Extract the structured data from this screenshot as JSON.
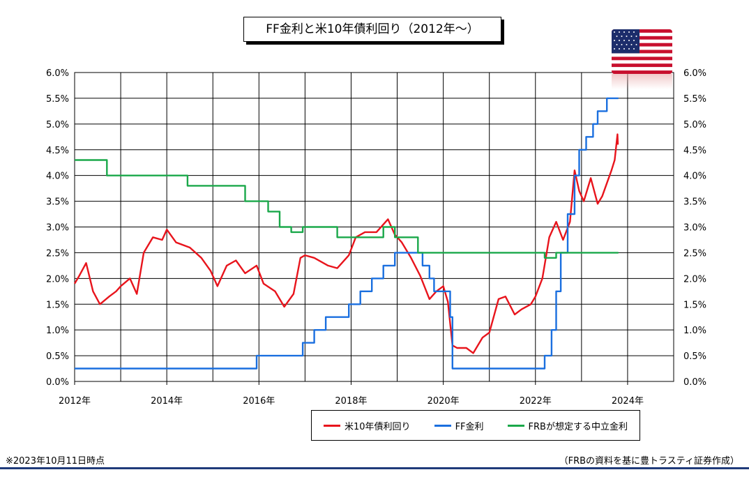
{
  "title": "FF金利と米10年債利回り（2012年～）",
  "note_left": "※2023年10月11日時点",
  "note_right": "（FRBの資料を基に豊トラスティ証券作成）",
  "flag_icon": "us-flag-icon",
  "chart_data": {
    "type": "line",
    "title": "FF金利と米10年債利回り（2012年～）",
    "xlim": [
      2012,
      2025
    ],
    "ylim": [
      0,
      6
    ],
    "y_ticks": [
      "0.0%",
      "0.5%",
      "1.0%",
      "1.5%",
      "2.0%",
      "2.5%",
      "3.0%",
      "3.5%",
      "4.0%",
      "4.5%",
      "5.0%",
      "5.5%",
      "6.0%"
    ],
    "x_ticks": [
      {
        "value": 2012,
        "label": "2012年"
      },
      {
        "value": 2014,
        "label": "2014年"
      },
      {
        "value": 2016,
        "label": "2016年"
      },
      {
        "value": 2018,
        "label": "2018年"
      },
      {
        "value": 2020,
        "label": "2020年"
      },
      {
        "value": 2022,
        "label": "2022年"
      },
      {
        "value": 2024,
        "label": "2024年"
      }
    ],
    "grid": true,
    "legend_position": "bottom-right",
    "series": [
      {
        "name": "米10年債利回り",
        "color": "#e8141c",
        "style": "line",
        "points": [
          [
            2012.0,
            1.9
          ],
          [
            2012.1,
            2.05
          ],
          [
            2012.25,
            2.3
          ],
          [
            2012.4,
            1.75
          ],
          [
            2012.55,
            1.5
          ],
          [
            2012.75,
            1.65
          ],
          [
            2012.9,
            1.75
          ],
          [
            2013.0,
            1.85
          ],
          [
            2013.2,
            2.0
          ],
          [
            2013.35,
            1.7
          ],
          [
            2013.5,
            2.5
          ],
          [
            2013.7,
            2.8
          ],
          [
            2013.9,
            2.75
          ],
          [
            2014.0,
            2.95
          ],
          [
            2014.2,
            2.7
          ],
          [
            2014.5,
            2.6
          ],
          [
            2014.75,
            2.4
          ],
          [
            2014.95,
            2.15
          ],
          [
            2015.1,
            1.85
          ],
          [
            2015.3,
            2.25
          ],
          [
            2015.5,
            2.35
          ],
          [
            2015.7,
            2.1
          ],
          [
            2015.95,
            2.25
          ],
          [
            2016.1,
            1.9
          ],
          [
            2016.35,
            1.75
          ],
          [
            2016.55,
            1.45
          ],
          [
            2016.75,
            1.7
          ],
          [
            2016.9,
            2.4
          ],
          [
            2017.0,
            2.45
          ],
          [
            2017.2,
            2.4
          ],
          [
            2017.5,
            2.25
          ],
          [
            2017.7,
            2.2
          ],
          [
            2017.95,
            2.45
          ],
          [
            2018.1,
            2.8
          ],
          [
            2018.3,
            2.9
          ],
          [
            2018.55,
            2.9
          ],
          [
            2018.8,
            3.15
          ],
          [
            2018.95,
            2.85
          ],
          [
            2019.1,
            2.7
          ],
          [
            2019.3,
            2.4
          ],
          [
            2019.5,
            2.05
          ],
          [
            2019.7,
            1.6
          ],
          [
            2019.85,
            1.75
          ],
          [
            2020.0,
            1.85
          ],
          [
            2020.1,
            1.55
          ],
          [
            2020.2,
            0.7
          ],
          [
            2020.3,
            0.65
          ],
          [
            2020.5,
            0.65
          ],
          [
            2020.65,
            0.55
          ],
          [
            2020.85,
            0.85
          ],
          [
            2021.0,
            0.95
          ],
          [
            2021.2,
            1.6
          ],
          [
            2021.35,
            1.65
          ],
          [
            2021.55,
            1.3
          ],
          [
            2021.7,
            1.4
          ],
          [
            2021.9,
            1.5
          ],
          [
            2022.0,
            1.65
          ],
          [
            2022.15,
            2.0
          ],
          [
            2022.3,
            2.8
          ],
          [
            2022.45,
            3.1
          ],
          [
            2022.6,
            2.75
          ],
          [
            2022.75,
            3.1
          ],
          [
            2022.85,
            4.1
          ],
          [
            2022.95,
            3.7
          ],
          [
            2023.05,
            3.5
          ],
          [
            2023.2,
            3.95
          ],
          [
            2023.35,
            3.45
          ],
          [
            2023.45,
            3.6
          ],
          [
            2023.55,
            3.85
          ],
          [
            2023.65,
            4.1
          ],
          [
            2023.72,
            4.3
          ],
          [
            2023.78,
            4.8
          ],
          [
            2023.79,
            4.6
          ]
        ]
      },
      {
        "name": "FF金利",
        "color": "#1a6fdf",
        "style": "step",
        "points": [
          [
            2012.0,
            0.25
          ],
          [
            2015.95,
            0.25
          ],
          [
            2015.95,
            0.5
          ],
          [
            2016.95,
            0.5
          ],
          [
            2016.95,
            0.75
          ],
          [
            2017.2,
            0.75
          ],
          [
            2017.2,
            1.0
          ],
          [
            2017.45,
            1.0
          ],
          [
            2017.45,
            1.25
          ],
          [
            2017.95,
            1.25
          ],
          [
            2017.95,
            1.5
          ],
          [
            2018.2,
            1.5
          ],
          [
            2018.2,
            1.75
          ],
          [
            2018.45,
            1.75
          ],
          [
            2018.45,
            2.0
          ],
          [
            2018.7,
            2.0
          ],
          [
            2018.7,
            2.25
          ],
          [
            2018.95,
            2.25
          ],
          [
            2018.95,
            2.5
          ],
          [
            2019.55,
            2.5
          ],
          [
            2019.55,
            2.25
          ],
          [
            2019.7,
            2.25
          ],
          [
            2019.7,
            2.0
          ],
          [
            2019.8,
            2.0
          ],
          [
            2019.8,
            1.75
          ],
          [
            2020.15,
            1.75
          ],
          [
            2020.15,
            1.25
          ],
          [
            2020.2,
            1.25
          ],
          [
            2020.2,
            0.25
          ],
          [
            2022.2,
            0.25
          ],
          [
            2022.2,
            0.5
          ],
          [
            2022.35,
            0.5
          ],
          [
            2022.35,
            1.0
          ],
          [
            2022.45,
            1.0
          ],
          [
            2022.45,
            1.75
          ],
          [
            2022.55,
            1.75
          ],
          [
            2022.55,
            2.5
          ],
          [
            2022.7,
            2.5
          ],
          [
            2022.7,
            3.25
          ],
          [
            2022.85,
            3.25
          ],
          [
            2022.85,
            4.0
          ],
          [
            2022.95,
            4.0
          ],
          [
            2022.95,
            4.5
          ],
          [
            2023.1,
            4.5
          ],
          [
            2023.1,
            4.75
          ],
          [
            2023.25,
            4.75
          ],
          [
            2023.25,
            5.0
          ],
          [
            2023.35,
            5.0
          ],
          [
            2023.35,
            5.25
          ],
          [
            2023.55,
            5.25
          ],
          [
            2023.55,
            5.5
          ],
          [
            2023.8,
            5.5
          ]
        ]
      },
      {
        "name": "FRBが想定する中立金利",
        "color": "#1aa84a",
        "style": "step",
        "points": [
          [
            2012.0,
            4.3
          ],
          [
            2012.7,
            4.3
          ],
          [
            2012.7,
            4.0
          ],
          [
            2014.45,
            4.0
          ],
          [
            2014.45,
            3.8
          ],
          [
            2015.7,
            3.8
          ],
          [
            2015.7,
            3.5
          ],
          [
            2016.2,
            3.5
          ],
          [
            2016.2,
            3.3
          ],
          [
            2016.45,
            3.3
          ],
          [
            2016.45,
            3.0
          ],
          [
            2016.7,
            3.0
          ],
          [
            2016.7,
            2.9
          ],
          [
            2016.95,
            2.9
          ],
          [
            2016.95,
            3.0
          ],
          [
            2017.7,
            3.0
          ],
          [
            2017.7,
            2.8
          ],
          [
            2018.7,
            2.8
          ],
          [
            2018.7,
            3.0
          ],
          [
            2018.95,
            3.0
          ],
          [
            2018.95,
            2.8
          ],
          [
            2019.45,
            2.8
          ],
          [
            2019.45,
            2.5
          ],
          [
            2021.95,
            2.5
          ],
          [
            2022.2,
            2.5
          ],
          [
            2022.2,
            2.4
          ],
          [
            2022.45,
            2.4
          ],
          [
            2022.45,
            2.5
          ],
          [
            2023.8,
            2.5
          ]
        ]
      }
    ]
  }
}
